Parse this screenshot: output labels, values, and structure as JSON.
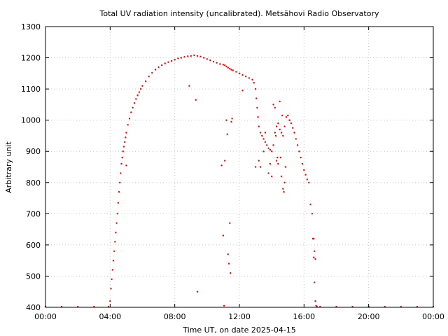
{
  "chart_data": {
    "type": "scatter",
    "title": "Total UV radiation intensity (uncalibrated). Metsähovi Radio Observatory",
    "xlabel": "Time UT, on date 2025-04-15",
    "ylabel": "Arbitrary unit",
    "xlim": [
      0,
      24
    ],
    "ylim": [
      400,
      1300
    ],
    "xticks": [
      {
        "value": 0,
        "label": "00:00"
      },
      {
        "value": 4,
        "label": "04:00"
      },
      {
        "value": 8,
        "label": "08:00"
      },
      {
        "value": 12,
        "label": "12:00"
      },
      {
        "value": 16,
        "label": "16:00"
      },
      {
        "value": 20,
        "label": "20:00"
      },
      {
        "value": 24,
        "label": "00:00"
      }
    ],
    "yticks": [
      {
        "value": 400,
        "label": "400"
      },
      {
        "value": 500,
        "label": "500"
      },
      {
        "value": 600,
        "label": "600"
      },
      {
        "value": 700,
        "label": "700"
      },
      {
        "value": 800,
        "label": "800"
      },
      {
        "value": 900,
        "label": "900"
      },
      {
        "value": 1000,
        "label": "1000"
      },
      {
        "value": 1100,
        "label": "1100"
      },
      {
        "value": 1200,
        "label": "1200"
      },
      {
        "value": 1300,
        "label": "1300"
      }
    ],
    "grid": true,
    "marker_color": "#ff0000",
    "series": [
      {
        "x": [
          0.0,
          1.0,
          2.0,
          3.0,
          3.9,
          4.0,
          4.05,
          4.1,
          4.15,
          4.2,
          4.25,
          4.3,
          4.35,
          4.4,
          4.45,
          4.5,
          4.55,
          4.6,
          4.65,
          4.7,
          4.75,
          4.8,
          4.85,
          4.9,
          4.95,
          5.0,
          5.1,
          5.2,
          5.3,
          5.4,
          5.5,
          5.6,
          5.7,
          5.8,
          5.9,
          6.0,
          6.2,
          6.4,
          6.6,
          6.8,
          7.0,
          7.2,
          7.4,
          7.6,
          7.8,
          8.0,
          8.2,
          8.4,
          8.6,
          8.8,
          9.0,
          9.2,
          9.4,
          9.6,
          9.8,
          10.0,
          10.2,
          10.4,
          10.6,
          10.8,
          11.0,
          11.1,
          11.2,
          11.3,
          11.4,
          11.5,
          11.6,
          11.8,
          12.0,
          12.2,
          12.4,
          12.6,
          12.8,
          12.9,
          13.0,
          13.05,
          13.1,
          13.15,
          13.2,
          13.3,
          13.4,
          13.5,
          13.6,
          13.7,
          13.8,
          13.9,
          14.0,
          14.1,
          14.2,
          14.3,
          14.4,
          14.5,
          14.6,
          14.7,
          14.8,
          14.9,
          15.0,
          15.1,
          15.2,
          15.3,
          15.4,
          15.5,
          15.6,
          15.7,
          15.8,
          15.9,
          16.0,
          16.1,
          16.2,
          16.3,
          16.4,
          16.5,
          16.55,
          16.6,
          16.65,
          16.7,
          16.75,
          16.8,
          17.0,
          18.0,
          19.0,
          20.0,
          21.0,
          22.0,
          23.0,
          24.0,
          5.0,
          8.9,
          9.3,
          9.4,
          10.9,
          11.0,
          11.05,
          11.1,
          11.2,
          11.25,
          11.3,
          11.35,
          11.4,
          11.45,
          11.5,
          11.55,
          12.2,
          13.0,
          13.2,
          13.3,
          13.5,
          13.8,
          14.0,
          14.1,
          14.2,
          14.3,
          14.4,
          14.5,
          14.6,
          14.7,
          14.75,
          14.8,
          14.85,
          15.1,
          13.6,
          13.9,
          14.35,
          14.65,
          14.25,
          14.55,
          16.6,
          16.65,
          16.7
        ],
        "y": [
          402,
          402,
          402,
          402,
          402,
          420,
          460,
          490,
          520,
          550,
          580,
          610,
          640,
          670,
          700,
          735,
          770,
          800,
          830,
          860,
          880,
          900,
          915,
          930,
          945,
          960,
          985,
          1005,
          1025,
          1040,
          1055,
          1068,
          1080,
          1090,
          1100,
          1110,
          1125,
          1140,
          1152,
          1162,
          1170,
          1176,
          1182,
          1186,
          1190,
          1194,
          1198,
          1200,
          1203,
          1205,
          1206,
          1208,
          1206,
          1204,
          1200,
          1196,
          1192,
          1188,
          1184,
          1180,
          1178,
          1176,
          1172,
          1168,
          1165,
          1162,
          1160,
          1155,
          1150,
          1145,
          1140,
          1135,
          1130,
          1120,
          1100,
          1070,
          1040,
          1010,
          980,
          960,
          950,
          940,
          930,
          920,
          910,
          905,
          900,
          920,
          960,
          980,
          990,
          970,
          960,
          950,
          980,
          1010,
          1015,
          1000,
          990,
          975,
          960,
          940,
          920,
          900,
          880,
          860,
          840,
          825,
          810,
          800,
          730,
          700,
          620,
          560,
          480,
          420,
          405,
          402,
          402,
          402,
          402,
          402,
          402,
          402,
          402,
          402,
          855,
          1110,
          1065,
          450,
          855,
          630,
          405,
          870,
          1000,
          955,
          570,
          540,
          670,
          510,
          995,
          1005,
          1095,
          850,
          870,
          850,
          900,
          830,
          820,
          1050,
          1040,
          870,
          860,
          1060,
          820,
          780,
          770,
          800,
          850,
          1000,
          960,
          860,
          880,
          1015,
          950,
          880,
          620,
          580,
          555
        ]
      }
    ]
  }
}
